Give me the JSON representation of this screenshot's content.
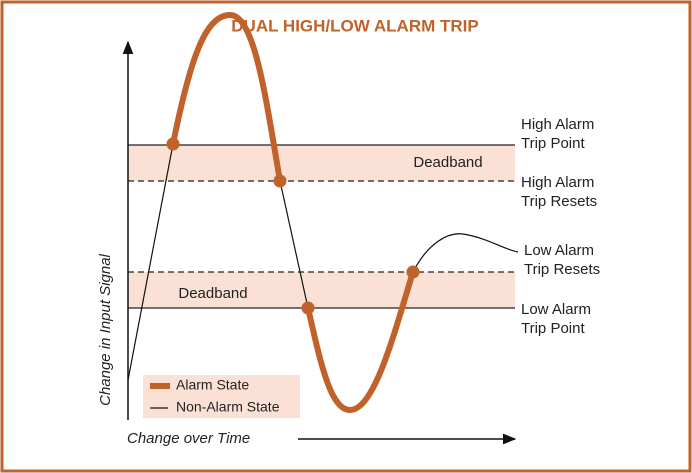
{
  "title": "DUAL HIGH/LOW ALARM TRIP",
  "axes": {
    "y_label": "Change in Input Signal",
    "x_label": "Change over Time"
  },
  "bands": [
    {
      "label": "Deadband"
    },
    {
      "label": "Deadband"
    }
  ],
  "levels": {
    "high_trip_point": [
      "High Alarm",
      "Trip Point"
    ],
    "high_trip_resets": [
      "High Alarm",
      "Trip Resets"
    ],
    "low_trip_resets": [
      "Low Alarm",
      "Trip Resets"
    ],
    "low_trip_point": [
      "Low Alarm",
      "Trip Point"
    ]
  },
  "legend": {
    "alarm": "Alarm State",
    "non_alarm": "Non-Alarm State"
  }
}
